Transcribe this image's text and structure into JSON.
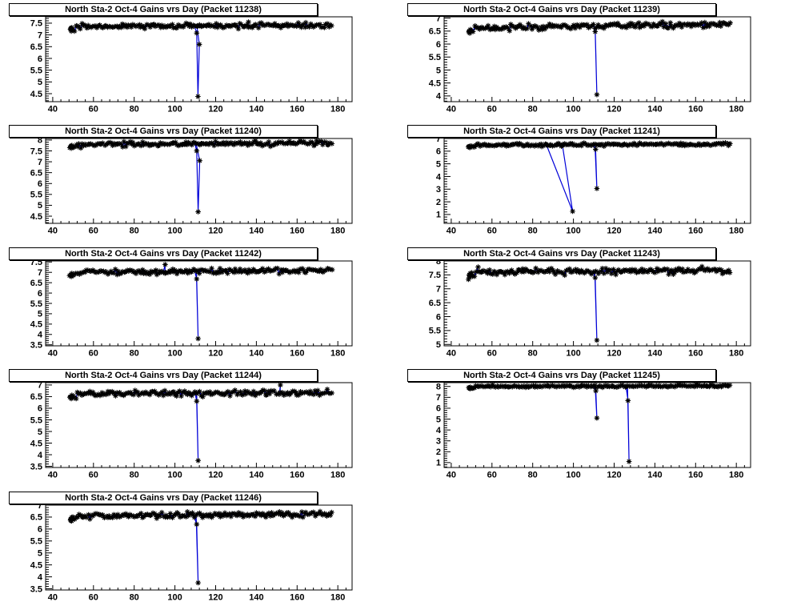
{
  "page": {
    "background": "#ffffff"
  },
  "style": {
    "line_color": "#0000d8",
    "marker_color": "#000000",
    "frame_color": "#000000",
    "title_text_color": "#000000",
    "title_box_bg": "#ffffff"
  },
  "chart_data": [
    {
      "type": "scatter",
      "title": "North Sta-2 Oct-4 Gains vrs Day (Packet 11238)",
      "packet": "11238",
      "xlabel": "",
      "ylabel": "",
      "x_axis": {
        "min": 36.5,
        "max": 187,
        "major_ticks": [
          40,
          60,
          80,
          100,
          120,
          140,
          160,
          180
        ],
        "minor_step": 4
      },
      "y_axis": {
        "min": 4.16,
        "max": 7.77,
        "major_ticks": [
          4.5,
          5,
          5.5,
          6,
          6.5,
          7,
          7.5
        ],
        "minor_step": 0.1
      },
      "series": {
        "baseline": 7.38,
        "drift": [
          -0.02,
          0.04
        ],
        "noise_sd": 0.055,
        "x_start": 48.5,
        "x_end": 177,
        "n_points": 175,
        "seed": 11238,
        "start_cluster": [
          [
            48.8,
            -0.1
          ],
          [
            49.1,
            -0.2
          ],
          [
            49.4,
            -0.05
          ],
          [
            49.0,
            -0.14
          ]
        ],
        "anomalies": [
          {
            "after_x": 110.2,
            "points": [
              [
                110.7,
                7.08
              ],
              [
                111.3,
                4.38
              ],
              [
                112.0,
                6.6
              ]
            ]
          },
          {
            "after_x": 135.8,
            "points": [
              [
                136.1,
                7.55
              ]
            ]
          }
        ]
      }
    },
    {
      "type": "scatter",
      "title": "North Sta-2 Oct-4 Gains vrs Day (Packet 11239)",
      "packet": "11239",
      "xlabel": "",
      "ylabel": "",
      "x_axis": {
        "min": 36.5,
        "max": 187,
        "major_ticks": [
          40,
          60,
          80,
          100,
          120,
          140,
          160,
          180
        ],
        "minor_step": 4
      },
      "y_axis": {
        "min": 3.78,
        "max": 7.05,
        "major_ticks": [
          4,
          4.5,
          5,
          5.5,
          6,
          6.5,
          7
        ],
        "minor_step": 0.1
      },
      "series": {
        "baseline": 6.68,
        "drift": [
          -0.06,
          0.09
        ],
        "noise_sd": 0.055,
        "x_start": 48.5,
        "x_end": 177,
        "n_points": 175,
        "seed": 11239,
        "start_cluster": [
          [
            48.8,
            -0.12
          ],
          [
            49.1,
            -0.2
          ],
          [
            49.4,
            -0.06
          ],
          [
            49.0,
            -0.15
          ]
        ],
        "anomalies": [
          {
            "after_x": 110.2,
            "points": [
              [
                110.7,
                6.48
              ],
              [
                111.5,
                4.05
              ]
            ]
          }
        ]
      }
    },
    {
      "type": "scatter",
      "title": "North Sta-2 Oct-4 Gains vrs Day (Packet 11240)",
      "packet": "11240",
      "xlabel": "",
      "ylabel": "",
      "x_axis": {
        "min": 36.5,
        "max": 187,
        "major_ticks": [
          40,
          60,
          80,
          100,
          120,
          140,
          160,
          180
        ],
        "minor_step": 4
      },
      "y_axis": {
        "min": 4.17,
        "max": 8.07,
        "major_ticks": [
          4.5,
          5,
          5.5,
          6,
          6.5,
          7,
          7.5,
          8
        ],
        "minor_step": 0.1
      },
      "series": {
        "baseline": 7.84,
        "drift": [
          -0.04,
          0.02
        ],
        "noise_sd": 0.055,
        "x_start": 48.5,
        "x_end": 177,
        "n_points": 175,
        "seed": 11240,
        "start_cluster": [
          [
            48.8,
            -0.1
          ],
          [
            49.1,
            -0.18
          ],
          [
            49.4,
            -0.05
          ],
          [
            49.0,
            -0.12
          ]
        ],
        "anomalies": [
          {
            "after_x": 110.2,
            "points": [
              [
                110.7,
                7.5
              ],
              [
                111.4,
                4.7
              ],
              [
                112.2,
                7.05
              ]
            ]
          }
        ]
      }
    },
    {
      "type": "scatter",
      "title": "North Sta-2 Oct-4 Gains vrs Day (Packet 11241)",
      "packet": "11241",
      "xlabel": "",
      "ylabel": "",
      "x_axis": {
        "min": 36.5,
        "max": 187,
        "major_ticks": [
          40,
          60,
          80,
          100,
          120,
          140,
          160,
          180
        ],
        "minor_step": 4
      },
      "y_axis": {
        "min": 0.3,
        "max": 7.0,
        "major_ticks": [
          1,
          2,
          3,
          4,
          5,
          6,
          7
        ],
        "minor_step": 0.2
      },
      "series": {
        "baseline": 6.5,
        "drift": [
          -0.03,
          0.05
        ],
        "noise_sd": 0.06,
        "x_start": 48.5,
        "x_end": 177,
        "n_points": 175,
        "seed": 11241,
        "start_cluster": [
          [
            48.8,
            -0.1
          ],
          [
            49.1,
            -0.2
          ],
          [
            49.4,
            -0.06
          ],
          [
            49.0,
            -0.14
          ]
        ],
        "anomalies": [
          {
            "after_x": 87.0,
            "points": [
              [
                99.6,
                1.25
              ],
              [
                94.6,
                6.45
              ]
            ]
          },
          {
            "after_x": 110.3,
            "points": [
              [
                110.9,
                6.15
              ],
              [
                111.5,
                3.05
              ]
            ]
          }
        ]
      }
    },
    {
      "type": "scatter",
      "title": "North Sta-2 Oct-4 Gains vrs Day (Packet 11242)",
      "packet": "11242",
      "xlabel": "",
      "ylabel": "",
      "x_axis": {
        "min": 36.5,
        "max": 187,
        "major_ticks": [
          40,
          60,
          80,
          100,
          120,
          140,
          160,
          180
        ],
        "minor_step": 4
      },
      "y_axis": {
        "min": 3.45,
        "max": 7.55,
        "major_ticks": [
          3.5,
          4,
          4.5,
          5,
          5.5,
          6,
          6.5,
          7,
          7.5
        ],
        "minor_step": 0.1
      },
      "series": {
        "baseline": 7.05,
        "drift": [
          -0.05,
          0.05
        ],
        "noise_sd": 0.06,
        "x_start": 48.5,
        "x_end": 177,
        "n_points": 175,
        "seed": 11242,
        "start_cluster": [
          [
            48.8,
            -0.12
          ],
          [
            49.1,
            -0.2
          ],
          [
            49.4,
            -0.05
          ],
          [
            49.0,
            -0.15
          ]
        ],
        "anomalies": [
          {
            "after_x": 94.9,
            "points": [
              [
                95.2,
                7.38
              ]
            ]
          },
          {
            "after_x": 110.2,
            "points": [
              [
                110.7,
                6.68
              ],
              [
                111.4,
                3.8
              ]
            ]
          }
        ]
      }
    },
    {
      "type": "scatter",
      "title": "North Sta-2 Oct-4 Gains vrs Day (Packet 11243)",
      "packet": "11243",
      "xlabel": "",
      "ylabel": "",
      "x_axis": {
        "min": 36.5,
        "max": 187,
        "major_ticks": [
          40,
          60,
          80,
          100,
          120,
          140,
          160,
          180
        ],
        "minor_step": 4
      },
      "y_axis": {
        "min": 4.95,
        "max": 8.0,
        "major_ticks": [
          5,
          5.5,
          6,
          6.5,
          7,
          7.5,
          8
        ],
        "minor_step": 0.1
      },
      "series": {
        "baseline": 7.63,
        "drift": [
          -0.03,
          0.02
        ],
        "noise_sd": 0.055,
        "x_start": 48.5,
        "x_end": 177,
        "n_points": 175,
        "seed": 11243,
        "start_cluster": [
          [
            48.8,
            -0.1
          ],
          [
            49.1,
            -0.18
          ],
          [
            49.4,
            -0.04
          ],
          [
            49.0,
            -0.12
          ]
        ],
        "anomalies": [
          {
            "after_x": 52.9,
            "points": [
              [
                53.2,
                7.78
              ]
            ]
          },
          {
            "after_x": 110.2,
            "points": [
              [
                110.7,
                7.4
              ],
              [
                111.5,
                5.15
              ]
            ]
          }
        ]
      }
    },
    {
      "type": "scatter",
      "title": "North Sta-2 Oct-4 Gains vrs Day (Packet 11244)",
      "packet": "11244",
      "xlabel": "",
      "ylabel": "",
      "x_axis": {
        "min": 36.5,
        "max": 187,
        "major_ticks": [
          40,
          60,
          80,
          100,
          120,
          140,
          160,
          180
        ],
        "minor_step": 4
      },
      "y_axis": {
        "min": 3.45,
        "max": 7.1,
        "major_ticks": [
          3.5,
          4,
          4.5,
          5,
          5.5,
          6,
          6.5,
          7
        ],
        "minor_step": 0.1
      },
      "series": {
        "baseline": 6.65,
        "drift": [
          -0.04,
          0.03
        ],
        "noise_sd": 0.06,
        "x_start": 48.5,
        "x_end": 177,
        "n_points": 175,
        "seed": 11244,
        "start_cluster": [
          [
            48.8,
            -0.12
          ],
          [
            49.1,
            -0.2
          ],
          [
            49.4,
            -0.05
          ],
          [
            49.0,
            -0.14
          ]
        ],
        "anomalies": [
          {
            "after_x": 110.2,
            "points": [
              [
                110.7,
                6.3
              ],
              [
                111.4,
                3.75
              ]
            ]
          },
          {
            "after_x": 151.5,
            "points": [
              [
                151.8,
                7.0
              ]
            ]
          }
        ]
      }
    },
    {
      "type": "scatter",
      "title": "North Sta-2 Oct-4 Gains vrs Day (Packet 11245)",
      "packet": "11245",
      "xlabel": "",
      "ylabel": "",
      "x_axis": {
        "min": 36.5,
        "max": 187,
        "major_ticks": [
          40,
          60,
          80,
          100,
          120,
          140,
          160,
          180
        ],
        "minor_step": 4
      },
      "y_axis": {
        "min": 0.55,
        "max": 8.35,
        "major_ticks": [
          1,
          2,
          3,
          4,
          5,
          6,
          7,
          8
        ],
        "minor_step": 0.2
      },
      "series": {
        "baseline": 8.03,
        "drift": [
          -0.04,
          0.02
        ],
        "noise_sd": 0.05,
        "x_start": 48.5,
        "x_end": 177,
        "n_points": 175,
        "seed": 11245,
        "start_cluster": [
          [
            48.8,
            -0.1
          ],
          [
            49.1,
            -0.18
          ],
          [
            49.4,
            -0.05
          ],
          [
            49.0,
            -0.12
          ]
        ],
        "anomalies": [
          {
            "after_x": 110.5,
            "points": [
              [
                111.0,
                7.6
              ],
              [
                111.5,
                5.1
              ]
            ]
          },
          {
            "after_x": 126.4,
            "points": [
              [
                126.8,
                6.7
              ],
              [
                127.3,
                1.1
              ]
            ]
          }
        ]
      }
    },
    {
      "type": "scatter",
      "title": "North Sta-2 Oct-4 Gains vrs Day (Packet 11246)",
      "packet": "11246",
      "xlabel": "",
      "ylabel": "",
      "x_axis": {
        "min": 36.5,
        "max": 187,
        "major_ticks": [
          40,
          60,
          80,
          100,
          120,
          140,
          160,
          180
        ],
        "minor_step": 4
      },
      "y_axis": {
        "min": 3.45,
        "max": 7.0,
        "major_ticks": [
          3.5,
          4,
          4.5,
          5,
          5.5,
          6,
          6.5,
          7
        ],
        "minor_step": 0.1
      },
      "series": {
        "baseline": 6.58,
        "drift": [
          -0.04,
          0.04
        ],
        "noise_sd": 0.06,
        "x_start": 48.5,
        "x_end": 177,
        "n_points": 175,
        "seed": 11246,
        "start_cluster": [
          [
            48.8,
            -0.12
          ],
          [
            49.1,
            -0.2
          ],
          [
            49.4,
            -0.05
          ],
          [
            49.0,
            -0.15
          ]
        ],
        "anomalies": [
          {
            "after_x": 110.2,
            "points": [
              [
                110.7,
                6.2
              ],
              [
                111.4,
                3.75
              ]
            ]
          }
        ]
      }
    }
  ]
}
